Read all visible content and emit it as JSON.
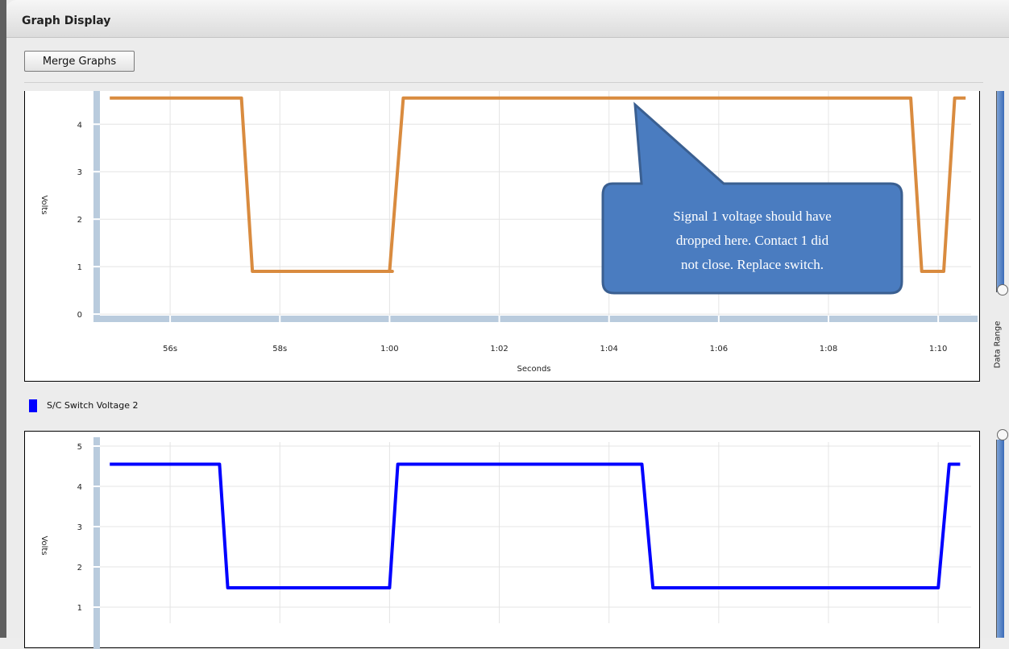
{
  "panel": {
    "title": "Graph Display",
    "merge_button": "Merge Graphs",
    "range_label": "Data Range"
  },
  "charts": {
    "chart1": {
      "ylabel": "Volts",
      "xlabel": "Seconds",
      "y_ticks": [
        "0",
        "1",
        "2",
        "3",
        "4"
      ],
      "x_ticks": [
        "56s",
        "58s",
        "1:00",
        "1:02",
        "1:04",
        "1:06",
        "1:08",
        "1:10"
      ],
      "callout": [
        "Signal 1 voltage should have",
        "dropped here.  Contact 1 did",
        "not close.  Replace switch."
      ]
    },
    "chart2": {
      "legend": "S/C Switch Voltage 2",
      "ylabel": "Volts",
      "y_ticks": [
        "1",
        "2",
        "3",
        "4",
        "5"
      ]
    }
  },
  "chart_data": [
    {
      "type": "line",
      "xlabel": "Seconds",
      "ylabel": "Volts",
      "x_unit": "seconds",
      "ylim": [
        -0.1,
        4.7
      ],
      "xlim": [
        54.75,
        70.6
      ],
      "grid": true,
      "series": [
        {
          "color": "#d98b3f",
          "x": [
            54.9,
            57.3,
            57.5,
            60.05,
            60.0,
            60.25,
            69.5,
            69.7,
            70.1,
            70.3,
            70.5
          ],
          "y": [
            4.55,
            4.55,
            0.9,
            0.9,
            0.9,
            4.55,
            4.55,
            0.9,
            0.9,
            4.55,
            4.55
          ]
        }
      ]
    },
    {
      "type": "line",
      "ylabel": "Volts",
      "x_unit": "seconds",
      "ylim": [
        0.6,
        5.1
      ],
      "xlim": [
        54.75,
        70.6
      ],
      "grid": true,
      "legend": "top-left",
      "series": [
        {
          "name": "S/C Switch Voltage 2",
          "color": "#0000ff",
          "x": [
            54.9,
            56.9,
            57.05,
            60.0,
            60.15,
            64.6,
            64.8,
            70.0,
            70.2,
            70.4
          ],
          "y": [
            4.55,
            4.55,
            1.48,
            1.48,
            4.55,
            4.55,
            1.48,
            1.48,
            4.55,
            4.55
          ]
        }
      ]
    }
  ]
}
